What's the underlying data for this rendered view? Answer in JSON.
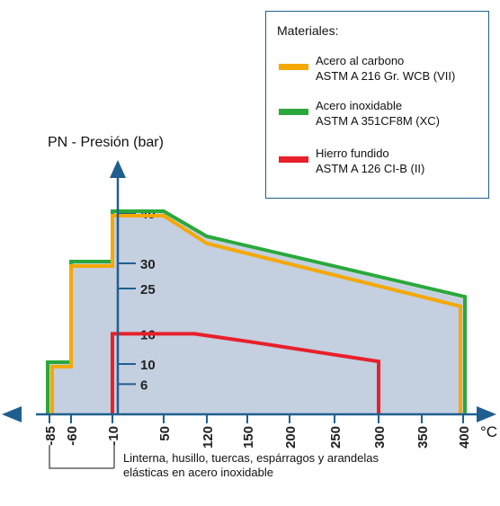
{
  "chart_data": {
    "type": "area",
    "ylabel": "PN - Presión (bar)",
    "x_unit": "°C",
    "x_ticks": [
      "-85",
      "-60",
      "-10",
      "50",
      "120",
      "150",
      "200",
      "250",
      "300",
      "350",
      "400"
    ],
    "y_ticks": [
      "6",
      "10",
      "16",
      "25",
      "30",
      "40"
    ],
    "legend_title": "Materiales:",
    "series": [
      {
        "name": "Acero al carbono",
        "subname": "ASTM A 216 Gr. WCB (VII)",
        "color": "#f5a800",
        "x": [
          -85,
          -85,
          -60,
          -60,
          -10,
          -10,
          50,
          120,
          400,
          400
        ],
        "y": [
          0,
          10,
          10,
          30,
          30,
          40,
          40,
          34.5,
          22,
          0
        ]
      },
      {
        "name": "Acero inoxidable",
        "subname": "ASTM A 351CF8M (XC)",
        "color": "#2aa83c",
        "x": [
          -85,
          -85,
          -60,
          -60,
          -10,
          -10,
          50,
          120,
          400,
          400
        ],
        "y": [
          0,
          10,
          10,
          30,
          30,
          40,
          40,
          35,
          23,
          0
        ]
      },
      {
        "name": "Hierro fundido",
        "subname": "ASTM A 126 CI-B (II)",
        "color": "#e8202a",
        "x": [
          -10,
          -10,
          100,
          150,
          300,
          300
        ],
        "y": [
          0,
          16,
          16,
          14.5,
          10.5,
          0
        ]
      }
    ],
    "fill_color": "#c4cfe0",
    "annotation": [
      "Linterna, husillo, tuercas, espárragos y arandelas",
      "elásticas en acero inoxidable"
    ]
  }
}
